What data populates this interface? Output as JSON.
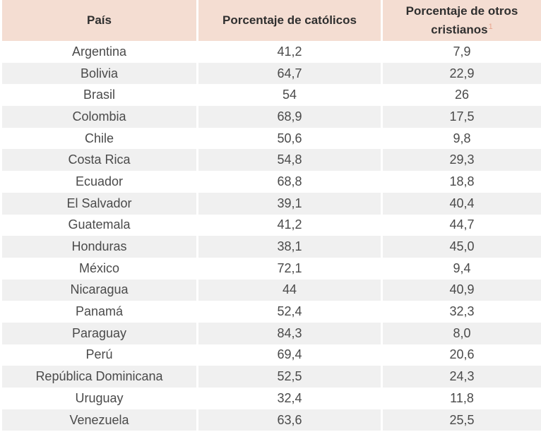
{
  "table": {
    "headers": {
      "country": "País",
      "catholic": "Porcentaje de católicos",
      "other": "Porcentaje de otros cristianos",
      "other_footnote": "1"
    },
    "rows": [
      {
        "country": "Argentina",
        "catholic": "41,2",
        "other": "7,9"
      },
      {
        "country": "Bolivia",
        "catholic": "64,7",
        "other": "22,9"
      },
      {
        "country": "Brasil",
        "catholic": "54",
        "other": "26"
      },
      {
        "country": "Colombia",
        "catholic": "68,9",
        "other": "17,5"
      },
      {
        "country": "Chile",
        "catholic": "50,6",
        "other": "9,8"
      },
      {
        "country": "Costa Rica",
        "catholic": "54,8",
        "other": "29,3"
      },
      {
        "country": "Ecuador",
        "catholic": "68,8",
        "other": "18,8"
      },
      {
        "country": "El Salvador",
        "catholic": "39,1",
        "other": "40,4"
      },
      {
        "country": "Guatemala",
        "catholic": "41,2",
        "other": "44,7"
      },
      {
        "country": "Honduras",
        "catholic": "38,1",
        "other": "45,0"
      },
      {
        "country": "México",
        "catholic": "72,1",
        "other": "9,4"
      },
      {
        "country": "Nicaragua",
        "catholic": "44",
        "other": "40,9"
      },
      {
        "country": "Panamá",
        "catholic": "52,4",
        "other": "32,3"
      },
      {
        "country": "Paraguay",
        "catholic": "84,3",
        "other": "8,0"
      },
      {
        "country": "Perú",
        "catholic": "69,4",
        "other": "20,6"
      },
      {
        "country": "República Dominicana",
        "catholic": "52,5",
        "other": "24,3"
      },
      {
        "country": "Uruguay",
        "catholic": "32,4",
        "other": "11,8"
      },
      {
        "country": "Venezuela",
        "catholic": "63,6",
        "other": "25,5"
      }
    ]
  }
}
